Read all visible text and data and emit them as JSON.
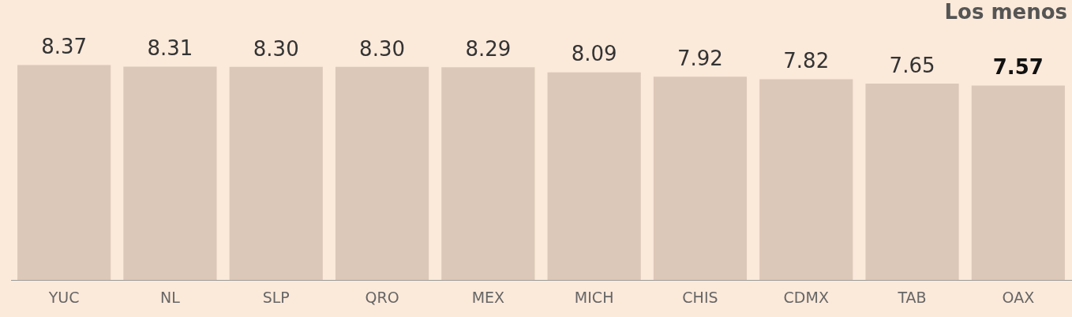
{
  "chart_data": {
    "type": "bar",
    "title": "Los menos",
    "categories": [
      "YUC",
      "NL",
      "SLP",
      "QRO",
      "MEX",
      "MICH",
      "CHIS",
      "CDMX",
      "TAB",
      "OAX"
    ],
    "values": [
      8.37,
      8.31,
      8.3,
      8.3,
      8.29,
      8.09,
      7.92,
      7.82,
      7.65,
      7.57
    ],
    "value_labels": [
      "8.37",
      "8.31",
      "8.30",
      "8.30",
      "8.29",
      "8.09",
      "7.92",
      "7.82",
      "7.65",
      "7.57"
    ],
    "color": "#dcc8b8",
    "legend": false
  }
}
